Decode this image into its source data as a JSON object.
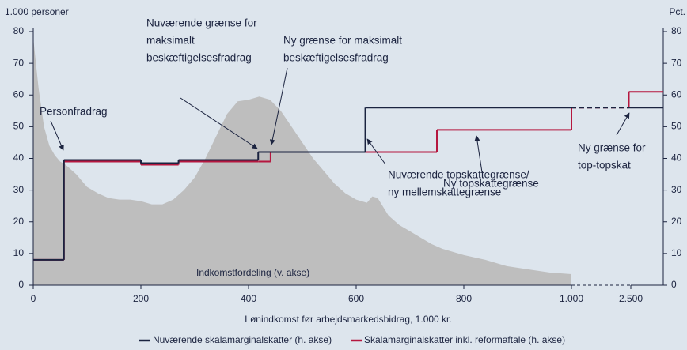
{
  "chart_data": {
    "type": "step",
    "left_axis_label": "1.000 personer",
    "right_axis_label": "Pct.",
    "x_label": "Lønindkomst før arbejdsmarkedsbidrag, 1.000 kr.",
    "xlim": [
      0,
      2700
    ],
    "xbreak": 1000,
    "xticks": [
      0,
      200,
      400,
      600,
      800,
      {
        "value": 1000,
        "label": "1.000"
      },
      {
        "value": 2500,
        "label": "2.500"
      }
    ],
    "ylim": [
      0,
      80
    ],
    "yticks": [
      0,
      10,
      20,
      30,
      40,
      50,
      60,
      70,
      80
    ],
    "y2lim": [
      0,
      80
    ],
    "y2ticks": [
      0,
      10,
      20,
      30,
      40,
      50,
      60,
      70,
      80
    ],
    "area": {
      "name": "Indkomstfordeling (v. akse)",
      "color": "#bebebe",
      "x": [
        0,
        10,
        20,
        30,
        40,
        50,
        60,
        80,
        100,
        120,
        140,
        160,
        180,
        200,
        220,
        240,
        260,
        280,
        300,
        320,
        340,
        360,
        380,
        400,
        420,
        440,
        460,
        480,
        500,
        520,
        540,
        560,
        580,
        600,
        620,
        630,
        640,
        660,
        680,
        700,
        720,
        740,
        760,
        780,
        800,
        840,
        880,
        920,
        960,
        1000
      ],
      "values": [
        78,
        62,
        50,
        44,
        41,
        39,
        38,
        35,
        31,
        29,
        27.5,
        27,
        27,
        26.5,
        25.5,
        25.5,
        27,
        30,
        34,
        40,
        47,
        54,
        58,
        58.5,
        59.5,
        58.5,
        55,
        50,
        45,
        40,
        36,
        32,
        29,
        27,
        26,
        28,
        27.5,
        22,
        19,
        17,
        15,
        13,
        11.5,
        10.5,
        9.5,
        8,
        6,
        5,
        4,
        3.5
      ]
    },
    "x": [
      0,
      57,
      200,
      270,
      418,
      441,
      617,
      750,
      1000,
      2450,
      2700
    ],
    "series": [
      {
        "name": "Nuværende skalamarginalskatter (h. akse)",
        "color": "#1a2340",
        "axis": "y2",
        "values": [
          8,
          39.5,
          38.5,
          39.5,
          42,
          42,
          56,
          56,
          56,
          56,
          56
        ]
      },
      {
        "name": "Skalamarginalskatter inkl. reformaftale (h. akse)",
        "color": "#b5173f",
        "axis": "y2",
        "values": [
          8,
          39,
          38,
          39,
          39,
          42,
          42,
          49,
          56,
          61,
          61
        ]
      }
    ],
    "annotations": [
      {
        "lines": [
          "Personfradrag"
        ]
      },
      {
        "lines": [
          "Nuværende grænse for",
          "maksimalt",
          "beskæftigelsesfradrag"
        ]
      },
      {
        "lines": [
          "Ny grænse for maksimalt",
          "beskæftigelsesfradrag"
        ]
      },
      {
        "lines": [
          "Ny topskattegrænse"
        ]
      },
      {
        "lines": [
          "Nuværende topskattegrænse/",
          "ny mellemskattegrænse"
        ]
      },
      {
        "lines": [
          "Ny grænse for",
          "top-topskat"
        ]
      }
    ]
  }
}
